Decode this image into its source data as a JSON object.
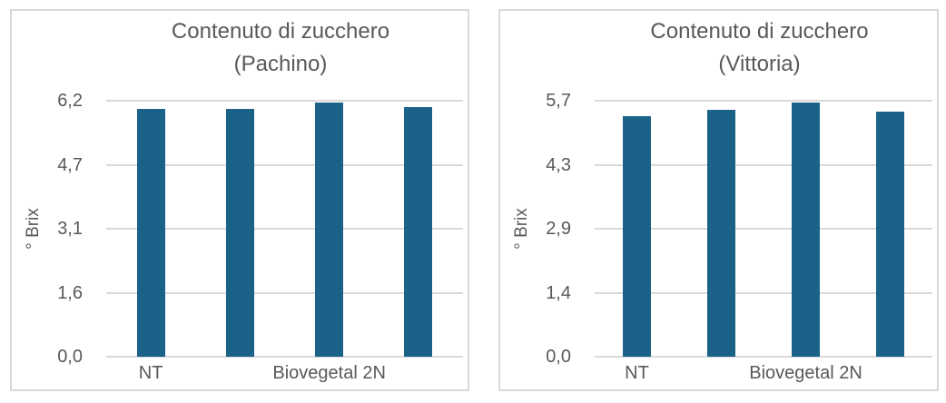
{
  "colors": {
    "bar": "#1A6288",
    "text": "#595959",
    "gridline": "#D9D9D9",
    "panel_border": "#D9D9D9",
    "background": "#FFFFFF"
  },
  "chart_data": [
    {
      "type": "bar",
      "title": "Contenuto di zucchero",
      "subtitle": "(Pachino)",
      "ylabel": "° Brix",
      "xlabel": "",
      "ylim": [
        0,
        6.2
      ],
      "grid": true,
      "legend": "none",
      "yticks": [
        {
          "label": "0,0",
          "value": 0
        },
        {
          "label": "1,6",
          "value": 1.55
        },
        {
          "label": "3,1",
          "value": 3.1
        },
        {
          "label": "4,7",
          "value": 4.65
        },
        {
          "label": "6,2",
          "value": 6.2
        }
      ],
      "groups": [
        {
          "label": "NT",
          "span": 1
        },
        {
          "label": "Biovegetal 2N",
          "span": 3
        }
      ],
      "categories": [
        "NT",
        "Biovegetal 2N",
        "Biovegetal 2N",
        "Biovegetal 2N"
      ],
      "values": [
        6.0,
        6.0,
        6.15,
        6.05
      ],
      "bar_color": "#1A6288"
    },
    {
      "type": "bar",
      "title": "Contenuto di zucchero",
      "subtitle": "(Vittoria)",
      "ylabel": "° Brix",
      "xlabel": "",
      "ylim": [
        0,
        5.7
      ],
      "grid": true,
      "legend": "none",
      "yticks": [
        {
          "label": "0,0",
          "value": 0
        },
        {
          "label": "1,4",
          "value": 1.425
        },
        {
          "label": "2,9",
          "value": 2.85
        },
        {
          "label": "4,3",
          "value": 4.275
        },
        {
          "label": "5,7",
          "value": 5.7
        }
      ],
      "groups": [
        {
          "label": "NT",
          "span": 1
        },
        {
          "label": "Biovegetal 2N",
          "span": 3
        }
      ],
      "categories": [
        "NT",
        "Biovegetal 2N",
        "Biovegetal 2N",
        "Biovegetal 2N"
      ],
      "values": [
        5.35,
        5.5,
        5.65,
        5.45
      ],
      "bar_color": "#1A6288"
    }
  ]
}
